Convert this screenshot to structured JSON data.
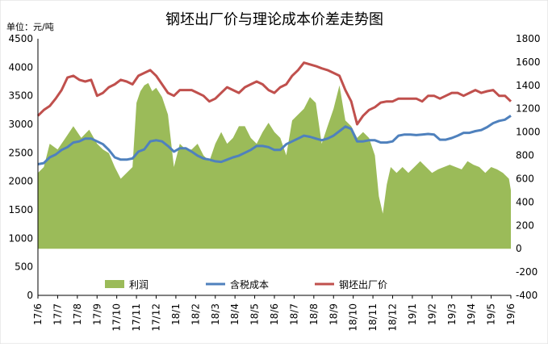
{
  "chart_data": {
    "type": "area+line",
    "title": "钢坯出厂价与理论成本价差走势图",
    "unit_label": "单位：元/吨",
    "left_axis": {
      "min": 0,
      "max": 4500,
      "step": 500,
      "ticks": [
        "0",
        "500",
        "1000",
        "1500",
        "2000",
        "2500",
        "3000",
        "3500",
        "4000",
        "4500"
      ]
    },
    "right_axis": {
      "min": -400,
      "max": 1800,
      "step": 200,
      "ticks": [
        "-400",
        "-200",
        "0",
        "200",
        "400",
        "600",
        "800",
        "1000",
        "1200",
        "1400",
        "1600",
        "1800"
      ]
    },
    "x_axis": {
      "ticks": [
        "17/6",
        "17/7",
        "17/8",
        "17/9",
        "17/10",
        "17/11",
        "17/12",
        "18/1",
        "18/2",
        "18/3",
        "18/4",
        "18/5",
        "18/6",
        "18/7",
        "18/8",
        "18/9",
        "18/10",
        "18/11",
        "18/12",
        "19/1",
        "19/2",
        "19/3",
        "19/4",
        "19/5",
        "19/6"
      ]
    },
    "grid": false,
    "legend_position": "inside-bottom",
    "series": [
      {
        "name": "利润",
        "axis": "right",
        "kind": "area",
        "color": "#9BBB59",
        "x": [
          0,
          0.3,
          0.6,
          1,
          1.4,
          1.8,
          2.2,
          2.6,
          3,
          3.3,
          3.6,
          3.9,
          4.2,
          4.5,
          4.8,
          5,
          5.2,
          5.4,
          5.6,
          5.8,
          6,
          6.3,
          6.6,
          6.9,
          7.2,
          7.5,
          7.8,
          8.1,
          8.4,
          8.7,
          9,
          9.3,
          9.6,
          9.9,
          10.2,
          10.5,
          10.8,
          11.1,
          11.4,
          11.7,
          12,
          12.3,
          12.6,
          12.9,
          13.2,
          13.5,
          13.8,
          14.1,
          14.4,
          14.7,
          15,
          15.3,
          15.6,
          15.9,
          16.2,
          16.5,
          16.8,
          17.1,
          17.3,
          17.5,
          17.7,
          17.9,
          18.2,
          18.5,
          18.8,
          19.1,
          19.4,
          19.7,
          20,
          20.3,
          20.6,
          20.9,
          21.2,
          21.5,
          21.8,
          22.1,
          22.4,
          22.7,
          23,
          23.3,
          23.6,
          23.9,
          24
        ],
        "values": [
          650,
          700,
          900,
          850,
          950,
          1050,
          950,
          1020,
          900,
          850,
          820,
          700,
          600,
          650,
          700,
          1250,
          1350,
          1400,
          1420,
          1350,
          1380,
          1300,
          1150,
          700,
          900,
          850,
          850,
          900,
          800,
          750,
          900,
          1000,
          900,
          950,
          1050,
          1050,
          950,
          900,
          1000,
          1080,
          1000,
          950,
          800,
          1100,
          1150,
          1200,
          1300,
          1250,
          900,
          1050,
          1200,
          1400,
          1100,
          1050,
          950,
          1000,
          950,
          800,
          450,
          300,
          550,
          700,
          650,
          700,
          650,
          700,
          750,
          700,
          650,
          680,
          700,
          720,
          700,
          680,
          750,
          720,
          700,
          650,
          700,
          680,
          650,
          600,
          500
        ]
      },
      {
        "name": "含税成本",
        "axis": "left",
        "kind": "line",
        "color": "#4F81BD",
        "x": [
          0,
          0.3,
          0.6,
          0.9,
          1.2,
          1.5,
          1.8,
          2.1,
          2.4,
          2.7,
          3,
          3.3,
          3.6,
          3.9,
          4.2,
          4.5,
          4.8,
          5.1,
          5.4,
          5.7,
          6,
          6.3,
          6.6,
          6.9,
          7.2,
          7.5,
          7.8,
          8.1,
          8.4,
          8.7,
          9,
          9.3,
          9.6,
          9.9,
          10.2,
          10.5,
          10.8,
          11.1,
          11.4,
          11.7,
          12,
          12.3,
          12.6,
          12.9,
          13.2,
          13.5,
          13.8,
          14.1,
          14.4,
          14.7,
          15,
          15.3,
          15.6,
          15.9,
          16.2,
          16.5,
          16.8,
          17.1,
          17.4,
          17.7,
          18,
          18.3,
          18.6,
          18.9,
          19.2,
          19.5,
          19.8,
          20.1,
          20.4,
          20.7,
          21,
          21.3,
          21.6,
          21.9,
          22.2,
          22.5,
          22.8,
          23.1,
          23.4,
          23.7,
          24
        ],
        "values": [
          2300,
          2320,
          2420,
          2470,
          2550,
          2600,
          2680,
          2700,
          2750,
          2750,
          2700,
          2650,
          2550,
          2420,
          2380,
          2380,
          2400,
          2520,
          2560,
          2700,
          2720,
          2700,
          2620,
          2520,
          2580,
          2580,
          2520,
          2450,
          2400,
          2380,
          2350,
          2340,
          2380,
          2420,
          2450,
          2500,
          2550,
          2620,
          2620,
          2600,
          2550,
          2550,
          2650,
          2700,
          2750,
          2800,
          2780,
          2750,
          2720,
          2750,
          2800,
          2880,
          2960,
          2920,
          2700,
          2700,
          2720,
          2720,
          2680,
          2680,
          2700,
          2800,
          2820,
          2820,
          2810,
          2820,
          2830,
          2820,
          2730,
          2730,
          2760,
          2800,
          2850,
          2850,
          2880,
          2900,
          2950,
          3020,
          3060,
          3080,
          3150
        ]
      },
      {
        "name": "钢坯出厂价",
        "axis": "left",
        "kind": "line",
        "color": "#C0504D",
        "x": [
          0,
          0.3,
          0.6,
          0.9,
          1.2,
          1.5,
          1.8,
          2.1,
          2.4,
          2.7,
          3,
          3.3,
          3.6,
          3.9,
          4.2,
          4.5,
          4.8,
          5.1,
          5.4,
          5.7,
          6,
          6.3,
          6.6,
          6.9,
          7.2,
          7.5,
          7.8,
          8.1,
          8.4,
          8.7,
          9,
          9.3,
          9.6,
          9.9,
          10.2,
          10.5,
          10.8,
          11.1,
          11.4,
          11.7,
          12,
          12.3,
          12.6,
          12.9,
          13.2,
          13.5,
          13.8,
          14.1,
          14.4,
          14.7,
          15,
          15.3,
          15.6,
          15.9,
          16.2,
          16.5,
          16.8,
          17.1,
          17.4,
          17.7,
          18,
          18.3,
          18.6,
          18.9,
          19.2,
          19.5,
          19.8,
          20.1,
          20.4,
          20.7,
          21,
          21.3,
          21.6,
          21.9,
          22.2,
          22.5,
          22.8,
          23.1,
          23.4,
          23.7,
          24
        ],
        "values": [
          3150,
          3250,
          3320,
          3450,
          3600,
          3820,
          3850,
          3780,
          3750,
          3780,
          3500,
          3550,
          3650,
          3700,
          3780,
          3750,
          3700,
          3850,
          3900,
          3950,
          3850,
          3700,
          3550,
          3500,
          3600,
          3600,
          3600,
          3550,
          3500,
          3400,
          3450,
          3550,
          3650,
          3600,
          3550,
          3650,
          3700,
          3750,
          3700,
          3600,
          3550,
          3650,
          3700,
          3850,
          3950,
          4080,
          4050,
          4020,
          3980,
          3950,
          3900,
          3850,
          3600,
          3400,
          3000,
          3150,
          3250,
          3300,
          3380,
          3400,
          3400,
          3450,
          3450,
          3450,
          3450,
          3400,
          3500,
          3500,
          3450,
          3500,
          3550,
          3550,
          3500,
          3550,
          3600,
          3550,
          3580,
          3600,
          3500,
          3500,
          3400
        ]
      }
    ]
  }
}
